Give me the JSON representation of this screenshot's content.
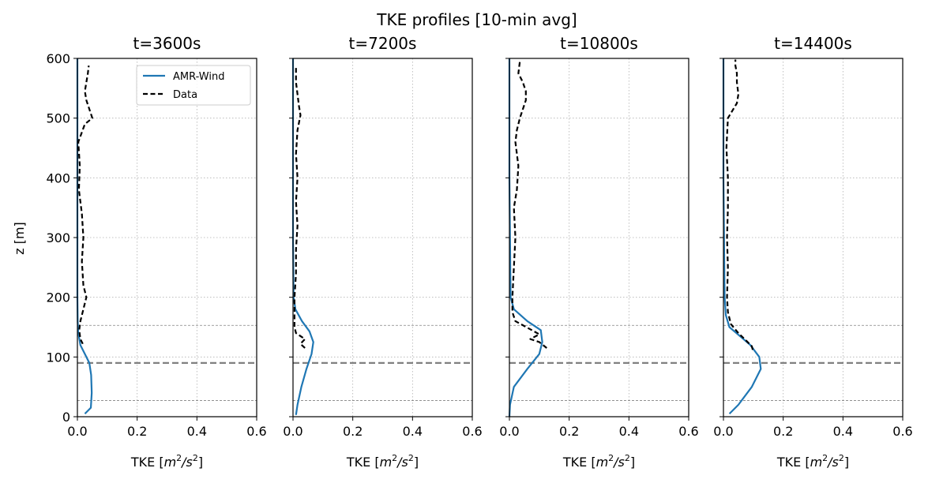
{
  "figure": {
    "title": "TKE profiles [10-min avg]"
  },
  "chart_data": {
    "type": "line",
    "ylabel": "z [m]",
    "xlim": [
      0.0,
      0.6
    ],
    "ylim": [
      0,
      600
    ],
    "x_ticks": [
      "0.0",
      "0.2",
      "0.4",
      "0.6"
    ],
    "y_ticks": [
      "0",
      "100",
      "200",
      "300",
      "400",
      "500",
      "600"
    ],
    "grid": true,
    "legend": {
      "placement": "upper-right of first panel",
      "entries": [
        {
          "name": "AMR-Wind",
          "style": "solid",
          "color": "#1f77b4"
        },
        {
          "name": "Data",
          "style": "dashed",
          "color": "#000000"
        }
      ]
    },
    "reference_lines": [
      {
        "z": 27,
        "style": "thin-dashed",
        "color": "#808080"
      },
      {
        "z": 90,
        "style": "dashed",
        "color": "#808080"
      },
      {
        "z": 153,
        "style": "thin-dashed",
        "color": "#808080"
      }
    ],
    "panels": [
      {
        "title": "t=3600s",
        "xlabel_prefix": "TKE [",
        "xlabel_unit_a": "m",
        "xlabel_exp_a": "2",
        "xlabel_slash": "/",
        "xlabel_unit_b": "s",
        "xlabel_exp_b": "2",
        "xlabel_suffix": "]",
        "series": [
          {
            "name": "AMR-Wind",
            "points": [
              [
                0.025,
                5
              ],
              [
                0.045,
                15
              ],
              [
                0.048,
                40
              ],
              [
                0.046,
                70
              ],
              [
                0.04,
                90
              ],
              [
                0.025,
                105
              ],
              [
                0.01,
                120
              ],
              [
                0.003,
                140
              ],
              [
                0.001,
                160
              ],
              [
                0.0,
                200
              ],
              [
                0.0,
                300
              ],
              [
                0.0,
                400
              ],
              [
                0.0,
                500
              ],
              [
                0.0,
                600
              ]
            ]
          },
          {
            "name": "Data",
            "points": [
              [
                0.018,
                122
              ],
              [
                0.01,
                130
              ],
              [
                0.006,
                145
              ],
              [
                0.01,
                160
              ],
              [
                0.02,
                180
              ],
              [
                0.03,
                200
              ],
              [
                0.02,
                220
              ],
              [
                0.015,
                260
              ],
              [
                0.02,
                300
              ],
              [
                0.015,
                340
              ],
              [
                0.005,
                380
              ],
              [
                0.008,
                420
              ],
              [
                0.003,
                460
              ],
              [
                0.025,
                490
              ],
              [
                0.05,
                500
              ],
              [
                0.04,
                515
              ],
              [
                0.03,
                530
              ],
              [
                0.025,
                545
              ],
              [
                0.03,
                560
              ],
              [
                0.035,
                575
              ],
              [
                0.038,
                588
              ]
            ]
          }
        ]
      },
      {
        "title": "t=7200s",
        "xlabel_prefix": "TKE [",
        "xlabel_unit_a": "m",
        "xlabel_exp_a": "2",
        "xlabel_slash": "/",
        "xlabel_unit_b": "s",
        "xlabel_exp_b": "2",
        "xlabel_suffix": "]",
        "series": [
          {
            "name": "AMR-Wind",
            "points": [
              [
                0.01,
                3
              ],
              [
                0.015,
                20
              ],
              [
                0.028,
                50
              ],
              [
                0.045,
                80
              ],
              [
                0.062,
                105
              ],
              [
                0.068,
                125
              ],
              [
                0.055,
                143
              ],
              [
                0.03,
                160
              ],
              [
                0.008,
                180
              ],
              [
                0.002,
                200
              ],
              [
                0.0,
                300
              ],
              [
                0.0,
                400
              ],
              [
                0.0,
                500
              ],
              [
                0.0,
                600
              ]
            ]
          },
          {
            "name": "Data",
            "points": [
              [
                0.04,
                115
              ],
              [
                0.025,
                122
              ],
              [
                0.04,
                130
              ],
              [
                0.01,
                140
              ],
              [
                0.005,
                150
              ],
              [
                0.005,
                170
              ],
              [
                0.005,
                200
              ],
              [
                0.01,
                240
              ],
              [
                0.01,
                280
              ],
              [
                0.015,
                320
              ],
              [
                0.01,
                360
              ],
              [
                0.015,
                400
              ],
              [
                0.01,
                440
              ],
              [
                0.015,
                480
              ],
              [
                0.025,
                505
              ],
              [
                0.02,
                520
              ],
              [
                0.015,
                540
              ],
              [
                0.01,
                560
              ],
              [
                0.01,
                588
              ]
            ]
          }
        ]
      },
      {
        "title": "t=10800s",
        "xlabel_prefix": "TKE [",
        "xlabel_unit_a": "m",
        "xlabel_exp_a": "2",
        "xlabel_slash": "/",
        "xlabel_unit_b": "s",
        "xlabel_exp_b": "2",
        "xlabel_suffix": "]",
        "series": [
          {
            "name": "AMR-Wind",
            "points": [
              [
                0.0,
                0
              ],
              [
                0.002,
                20
              ],
              [
                0.015,
                50
              ],
              [
                0.06,
                80
              ],
              [
                0.1,
                105
              ],
              [
                0.11,
                125
              ],
              [
                0.105,
                145
              ],
              [
                0.06,
                160
              ],
              [
                0.015,
                180
              ],
              [
                0.004,
                200
              ],
              [
                0.002,
                300
              ],
              [
                0.0,
                400
              ],
              [
                0.0,
                500
              ],
              [
                0.0,
                600
              ]
            ]
          },
          {
            "name": "Data",
            "points": [
              [
                0.125,
                115
              ],
              [
                0.1,
                125
              ],
              [
                0.07,
                130
              ],
              [
                0.1,
                138
              ],
              [
                0.075,
                145
              ],
              [
                0.02,
                160
              ],
              [
                0.01,
                175
              ],
              [
                0.01,
                200
              ],
              [
                0.015,
                250
              ],
              [
                0.02,
                300
              ],
              [
                0.015,
                350
              ],
              [
                0.025,
                380
              ],
              [
                0.03,
                420
              ],
              [
                0.02,
                460
              ],
              [
                0.025,
                480
              ],
              [
                0.035,
                500
              ],
              [
                0.055,
                530
              ],
              [
                0.055,
                545
              ],
              [
                0.045,
                560
              ],
              [
                0.03,
                575
              ],
              [
                0.035,
                595
              ]
            ]
          }
        ]
      },
      {
        "title": "t=14400s",
        "xlabel_prefix": "TKE [",
        "xlabel_unit_a": "m",
        "xlabel_exp_a": "2",
        "xlabel_slash": "/",
        "xlabel_unit_b": "s",
        "xlabel_exp_b": "2",
        "xlabel_suffix": "]",
        "series": [
          {
            "name": "AMR-Wind",
            "points": [
              [
                0.02,
                5
              ],
              [
                0.05,
                20
              ],
              [
                0.095,
                50
              ],
              [
                0.125,
                80
              ],
              [
                0.12,
                100
              ],
              [
                0.09,
                120
              ],
              [
                0.055,
                135
              ],
              [
                0.02,
                150
              ],
              [
                0.008,
                170
              ],
              [
                0.004,
                200
              ],
              [
                0.002,
                300
              ],
              [
                0.0,
                400
              ],
              [
                0.0,
                500
              ],
              [
                0.0,
                600
              ]
            ]
          },
          {
            "name": "Data",
            "points": [
              [
                0.098,
                112
              ],
              [
                0.095,
                118
              ],
              [
                0.075,
                128
              ],
              [
                0.05,
                140
              ],
              [
                0.025,
                155
              ],
              [
                0.015,
                175
              ],
              [
                0.012,
                200
              ],
              [
                0.015,
                250
              ],
              [
                0.012,
                300
              ],
              [
                0.015,
                350
              ],
              [
                0.015,
                400
              ],
              [
                0.01,
                450
              ],
              [
                0.015,
                500
              ],
              [
                0.045,
                525
              ],
              [
                0.05,
                540
              ],
              [
                0.045,
                560
              ],
              [
                0.045,
                575
              ],
              [
                0.04,
                588
              ],
              [
                0.04,
                598
              ]
            ]
          }
        ]
      }
    ]
  }
}
